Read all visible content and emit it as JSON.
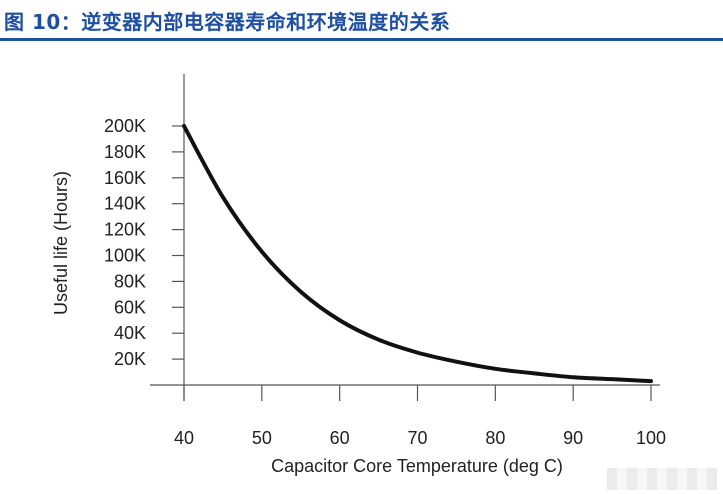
{
  "figure": {
    "title": "图 10：逆变器内部电容器寿命和环境温度的关系",
    "accent_color": "#1f4fa3"
  },
  "chart_data": {
    "type": "line",
    "xlabel": "Capacitor Core Temperature (deg C)",
    "ylabel": "Useful life (Hours)",
    "xlim": [
      40,
      100
    ],
    "ylim": [
      0,
      200000
    ],
    "x_ticks": [
      "40",
      "50",
      "60",
      "70",
      "80",
      "90",
      "100"
    ],
    "x_tick_values": [
      40,
      50,
      60,
      70,
      80,
      90,
      100
    ],
    "y_ticks": [
      "20K",
      "40K",
      "60K",
      "80K",
      "100K",
      "120K",
      "140K",
      "160K",
      "180K",
      "200K"
    ],
    "y_tick_values": [
      20000,
      40000,
      60000,
      80000,
      100000,
      120000,
      140000,
      160000,
      180000,
      200000
    ],
    "grid": false,
    "legend": "none",
    "series": [
      {
        "color": "#111111",
        "x": [
          40,
          45,
          50,
          55,
          60,
          65,
          70,
          75,
          80,
          85,
          90,
          95,
          100
        ],
        "y": [
          200000,
          145000,
          103000,
          72000,
          50000,
          35000,
          25000,
          18000,
          12500,
          9000,
          6000,
          4500,
          3000
        ]
      }
    ]
  }
}
